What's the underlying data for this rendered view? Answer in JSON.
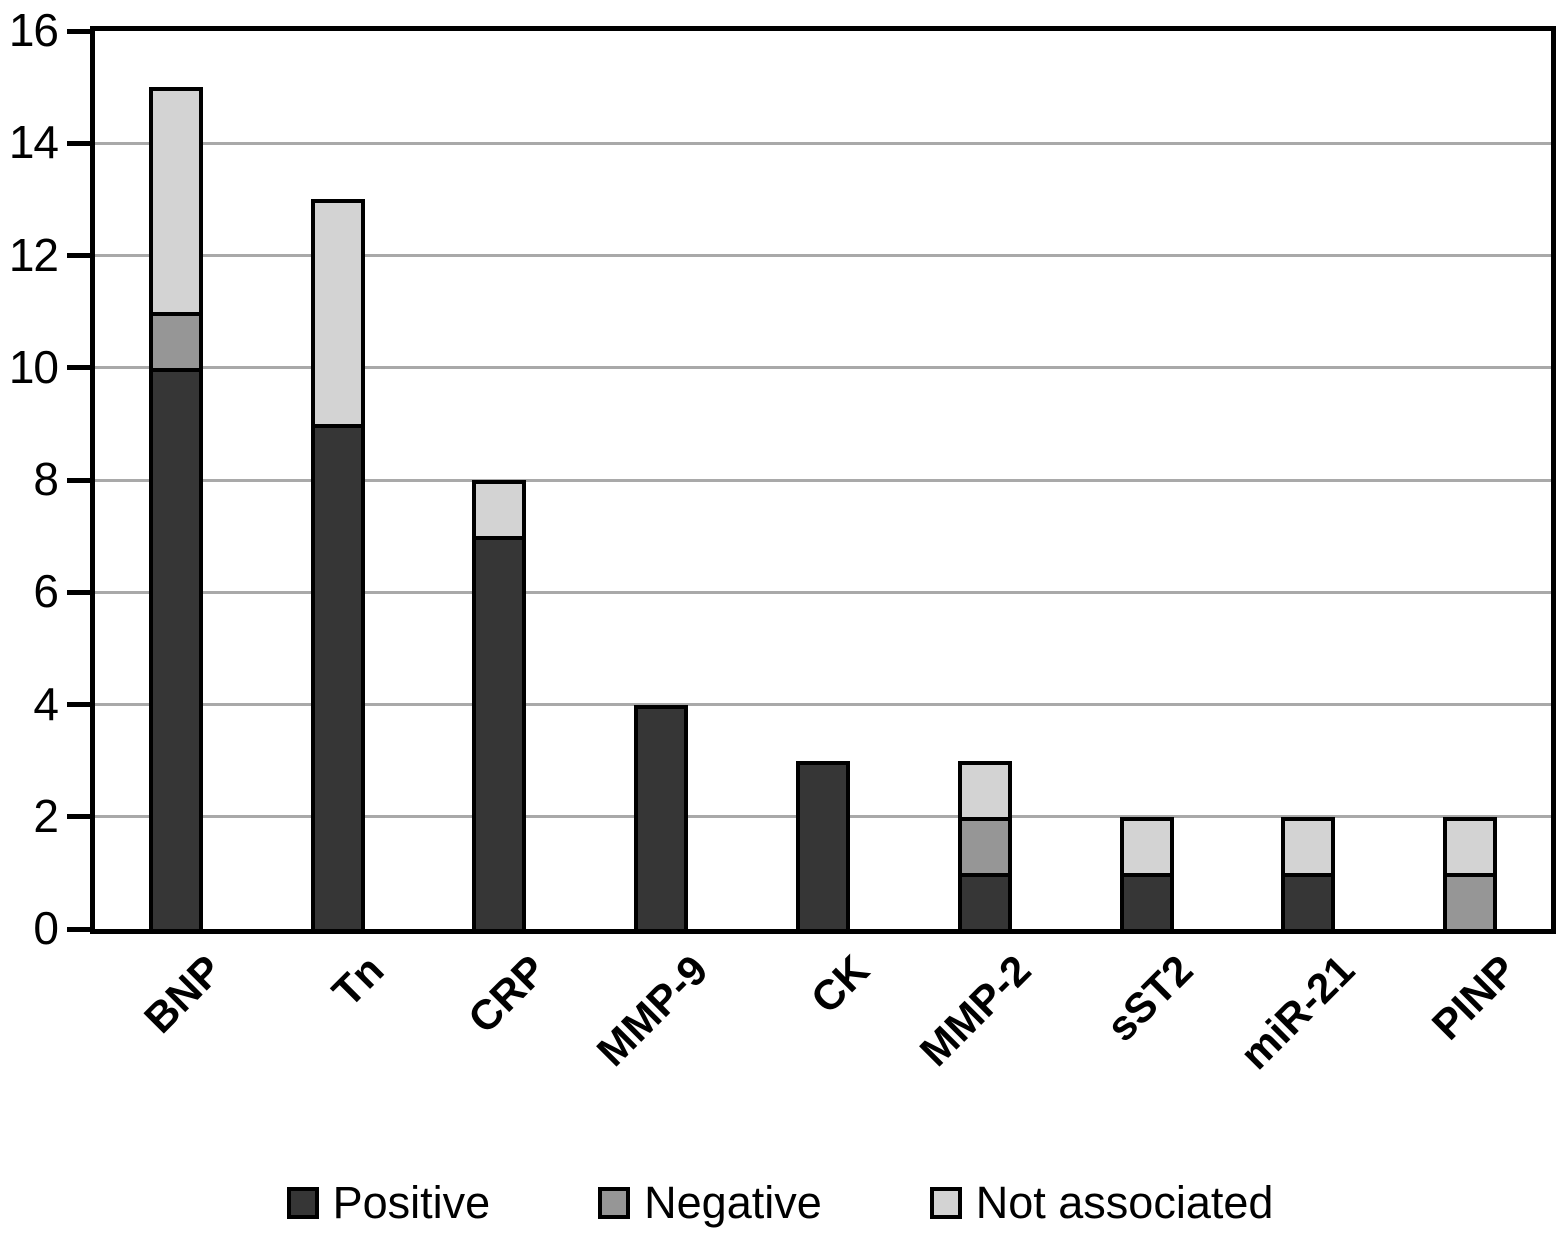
{
  "chart_data": {
    "type": "bar",
    "stacked": true,
    "title": "",
    "xlabel": "",
    "ylabel": "",
    "categories": [
      "BNP",
      "Tn",
      "CRP",
      "MMP-9",
      "CK",
      "MMP-2",
      "sST2",
      "miR-21",
      "PINP"
    ],
    "series": [
      {
        "name": "Positive",
        "color": "#363636",
        "values": [
          10,
          9,
          7,
          4,
          3,
          1,
          1,
          1,
          0
        ]
      },
      {
        "name": "Negative",
        "color": "#969696",
        "values": [
          1,
          0,
          0,
          0,
          0,
          1,
          0,
          0,
          1
        ]
      },
      {
        "name": "Not associated",
        "color": "#d3d3d3",
        "values": [
          4,
          4,
          1,
          0,
          0,
          1,
          1,
          1,
          1
        ]
      }
    ],
    "totals": [
      15,
      13,
      8,
      4,
      3,
      3,
      2,
      2,
      2
    ],
    "ylim": [
      0,
      16
    ],
    "yticks": [
      0,
      2,
      4,
      6,
      8,
      10,
      12,
      14,
      16
    ],
    "grid": "horizontal",
    "gridline_color": "#a9a9a9",
    "frame_color": "#000000",
    "legend_position": "bottom"
  },
  "legend": {
    "items": [
      {
        "label": "Positive",
        "color": "#363636"
      },
      {
        "label": "Negative",
        "color": "#969696"
      },
      {
        "label": "Not associated",
        "color": "#d3d3d3"
      }
    ]
  }
}
